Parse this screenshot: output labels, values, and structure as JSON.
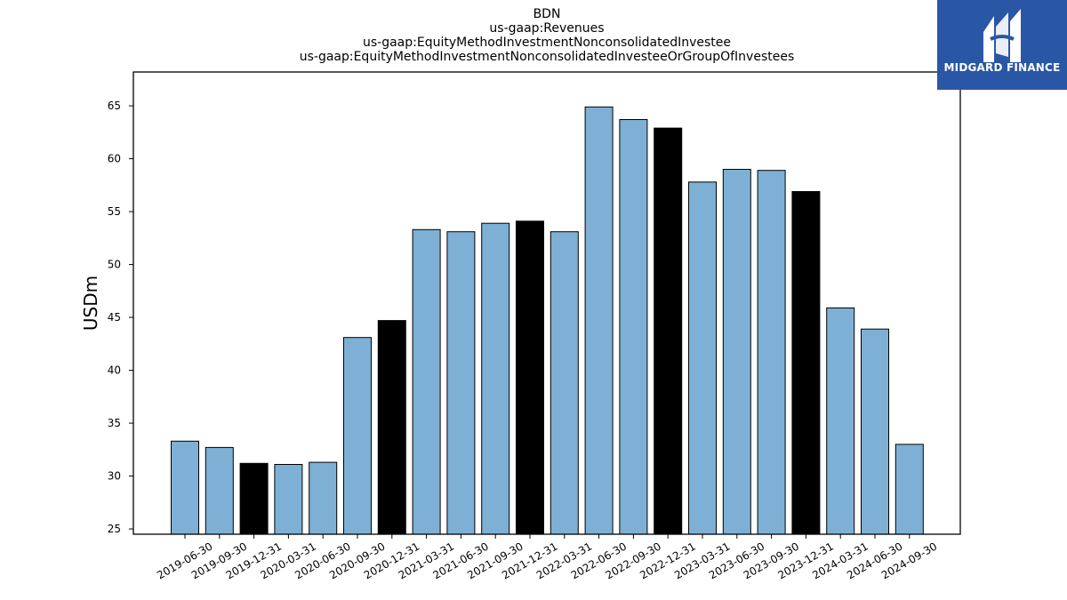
{
  "chart_data": {
    "type": "bar",
    "title_lines": [
      "BDN",
      "us-gaap:Revenues",
      "us-gaap:EquityMethodInvestmentNonconsolidatedInvestee",
      "us-gaap:EquityMethodInvestmentNonconsolidatedInvesteeOrGroupOfInvestees"
    ],
    "xlabel": "",
    "ylabel": "USDm",
    "ylim": [
      24.5,
      68.2
    ],
    "yticks": [
      25,
      30,
      35,
      40,
      45,
      50,
      55,
      60,
      65
    ],
    "grid": false,
    "categories": [
      "2019-06-30",
      "2019-09-30",
      "2019-12-31",
      "2020-03-31",
      "2020-06-30",
      "2020-09-30",
      "2020-12-31",
      "2021-03-31",
      "2021-06-30",
      "2021-09-30",
      "2021-12-31",
      "2022-03-31",
      "2022-06-30",
      "2022-09-30",
      "2022-12-31",
      "2023-03-31",
      "2023-06-30",
      "2023-09-30",
      "2023-12-31",
      "2024-03-31",
      "2024-06-30",
      "2024-09-30"
    ],
    "values": [
      33.3,
      32.7,
      31.2,
      31.1,
      31.3,
      43.1,
      44.7,
      53.3,
      53.1,
      53.9,
      54.1,
      53.1,
      64.9,
      63.7,
      62.9,
      57.8,
      59.0,
      58.9,
      56.9,
      45.9,
      43.9,
      33.0
    ],
    "bar_colors": [
      "#7eb0d5",
      "#7eb0d5",
      "#000000",
      "#7eb0d5",
      "#7eb0d5",
      "#7eb0d5",
      "#000000",
      "#7eb0d5",
      "#7eb0d5",
      "#7eb0d5",
      "#000000",
      "#7eb0d5",
      "#7eb0d5",
      "#7eb0d5",
      "#000000",
      "#7eb0d5",
      "#7eb0d5",
      "#7eb0d5",
      "#000000",
      "#7eb0d5",
      "#7eb0d5",
      "#7eb0d5"
    ],
    "colors": {
      "quarter": "#7eb0d5",
      "year_end": "#000000"
    }
  },
  "logo": {
    "text": "MIDGARD FINANCE",
    "background": "#2a56a6"
  }
}
